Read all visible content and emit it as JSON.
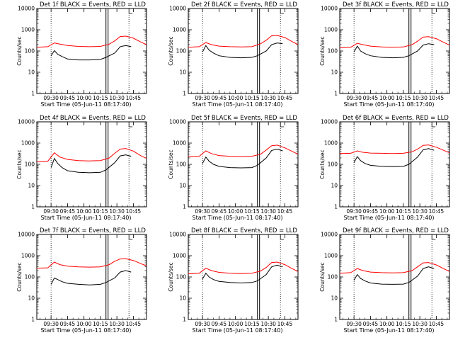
{
  "figure": {
    "ylabel": "Counts/sec",
    "xlabel": "Start Time (05-Jun-11 08:17:40)",
    "x_ticks": [
      "09:30",
      "09:45",
      "10:00",
      "10:15",
      "10:30",
      "10:45"
    ],
    "y_ticks": [
      "1",
      "10",
      "100",
      "1000",
      "10000"
    ],
    "event_color": "#000000",
    "lld_color": "#ff0000"
  },
  "chart_data": [
    {
      "type": "line",
      "title": "Det 1f BLACK = Events, RED = LLD",
      "xlabel": "Start Time (05-Jun-11 08:17:40)",
      "ylabel": "Counts/sec",
      "xlim": [
        "09:17",
        "10:57"
      ],
      "ylim": [
        1,
        10000
      ],
      "yscale": "log",
      "x_markers": [
        "09:30",
        "10:21",
        "10:41"
      ],
      "series": [
        {
          "name": "BLACK = Events",
          "color": "#000000",
          "x": [
            "09:30",
            "09:33",
            "09:36",
            "09:40",
            "09:45",
            "09:55",
            "10:05",
            "10:15",
            "10:20",
            "10:28",
            "10:33",
            "10:38",
            "10:43"
          ],
          "y": [
            60,
            105,
            70,
            55,
            42,
            38,
            38,
            40,
            50,
            80,
            160,
            180,
            160
          ]
        },
        {
          "name": "RED = LLD",
          "color": "#ff0000",
          "x": [
            "09:17",
            "09:27",
            "09:33",
            "09:38",
            "09:45",
            "09:55",
            "10:05",
            "10:15",
            "10:23",
            "10:28",
            "10:33",
            "10:38",
            "10:45",
            "10:52",
            "10:57"
          ],
          "y": [
            150,
            160,
            240,
            210,
            180,
            165,
            160,
            165,
            210,
            300,
            480,
            500,
            400,
            260,
            200
          ]
        }
      ]
    },
    {
      "type": "line",
      "title": "Det 2f BLACK = Events, RED = LLD",
      "xlabel": "Start Time (05-Jun-11 08:17:40)",
      "ylabel": "Counts/sec",
      "xlim": [
        "09:17",
        "10:57"
      ],
      "ylim": [
        1,
        10000
      ],
      "yscale": "log",
      "x_markers": [
        "09:30",
        "10:21",
        "10:41"
      ],
      "series": [
        {
          "name": "BLACK = Events",
          "color": "#000000",
          "x": [
            "09:30",
            "09:33",
            "09:36",
            "09:40",
            "09:45",
            "09:55",
            "10:05",
            "10:15",
            "10:20",
            "10:28",
            "10:33",
            "10:38",
            "10:43"
          ],
          "y": [
            90,
            180,
            110,
            80,
            60,
            50,
            48,
            50,
            60,
            100,
            200,
            240,
            220
          ]
        },
        {
          "name": "RED = LLD",
          "color": "#ff0000",
          "x": [
            "09:17",
            "09:27",
            "09:33",
            "09:38",
            "09:45",
            "09:55",
            "10:05",
            "10:15",
            "10:23",
            "10:28",
            "10:33",
            "10:38",
            "10:45",
            "10:52",
            "10:57"
          ],
          "y": [
            150,
            160,
            250,
            200,
            170,
            160,
            155,
            160,
            220,
            320,
            520,
            540,
            430,
            270,
            200
          ]
        }
      ]
    },
    {
      "type": "line",
      "title": "Det 3f BLACK = Events, RED = LLD",
      "xlabel": "Start Time (05-Jun-11 08:17:40)",
      "ylabel": "Counts/sec",
      "xlim": [
        "09:17",
        "10:57"
      ],
      "ylim": [
        1,
        10000
      ],
      "yscale": "log",
      "x_markers": [
        "09:30",
        "10:21",
        "10:41"
      ],
      "series": [
        {
          "name": "BLACK = Events",
          "color": "#000000",
          "x": [
            "09:30",
            "09:33",
            "09:36",
            "09:40",
            "09:45",
            "09:55",
            "10:05",
            "10:15",
            "10:20",
            "10:28",
            "10:33",
            "10:38",
            "10:43"
          ],
          "y": [
            90,
            170,
            100,
            75,
            60,
            50,
            48,
            50,
            60,
            100,
            190,
            220,
            200
          ]
        },
        {
          "name": "RED = LLD",
          "color": "#ff0000",
          "x": [
            "09:17",
            "09:27",
            "09:33",
            "09:38",
            "09:45",
            "09:55",
            "10:05",
            "10:15",
            "10:23",
            "10:28",
            "10:33",
            "10:38",
            "10:45",
            "10:52",
            "10:57"
          ],
          "y": [
            140,
            150,
            230,
            200,
            170,
            155,
            150,
            155,
            200,
            290,
            450,
            470,
            380,
            250,
            190
          ]
        }
      ]
    },
    {
      "type": "line",
      "title": "Det 4f BLACK = Events, RED = LLD",
      "xlabel": "Start Time (05-Jun-11 08:17:40)",
      "ylabel": "Counts/sec",
      "xlim": [
        "09:17",
        "10:57"
      ],
      "ylim": [
        1,
        10000
      ],
      "yscale": "log",
      "x_markers": [
        "09:30",
        "10:21",
        "10:41"
      ],
      "series": [
        {
          "name": "BLACK = Events",
          "color": "#000000",
          "x": [
            "09:30",
            "09:33",
            "09:36",
            "09:40",
            "09:45",
            "09:55",
            "10:05",
            "10:15",
            "10:20",
            "10:28",
            "10:33",
            "10:38",
            "10:43"
          ],
          "y": [
            70,
            190,
            110,
            70,
            50,
            42,
            40,
            42,
            55,
            120,
            250,
            280,
            240
          ]
        },
        {
          "name": "RED = LLD",
          "color": "#ff0000",
          "x": [
            "09:17",
            "09:27",
            "09:33",
            "09:38",
            "09:45",
            "09:55",
            "10:05",
            "10:15",
            "10:23",
            "10:28",
            "10:33",
            "10:38",
            "10:45",
            "10:52",
            "10:57"
          ],
          "y": [
            130,
            140,
            350,
            220,
            170,
            150,
            145,
            150,
            200,
            330,
            520,
            560,
            420,
            250,
            190
          ]
        }
      ]
    },
    {
      "type": "line",
      "title": "Det 5f BLACK = Events, RED = LLD",
      "xlabel": "Start Time (05-Jun-11 08:17:40)",
      "ylabel": "Counts/sec",
      "xlim": [
        "09:17",
        "10:57"
      ],
      "ylim": [
        1,
        10000
      ],
      "yscale": "log",
      "x_markers": [
        "09:30",
        "10:21",
        "10:41"
      ],
      "series": [
        {
          "name": "BLACK = Events",
          "color": "#000000",
          "x": [
            "09:30",
            "09:33",
            "09:36",
            "09:40",
            "09:45",
            "09:55",
            "10:05",
            "10:15",
            "10:20",
            "10:28",
            "10:33",
            "10:38",
            "10:43"
          ],
          "y": [
            110,
            220,
            140,
            100,
            80,
            70,
            68,
            70,
            90,
            200,
            450,
            520,
            430
          ]
        },
        {
          "name": "RED = LLD",
          "color": "#ff0000",
          "x": [
            "09:17",
            "09:27",
            "09:33",
            "09:38",
            "09:45",
            "09:55",
            "10:05",
            "10:15",
            "10:23",
            "10:28",
            "10:33",
            "10:38",
            "10:45",
            "10:52",
            "10:57"
          ],
          "y": [
            230,
            240,
            430,
            320,
            260,
            240,
            230,
            240,
            300,
            470,
            750,
            800,
            600,
            400,
            300
          ]
        }
      ]
    },
    {
      "type": "line",
      "title": "Det 6f BLACK = Events, RED = LLD",
      "xlabel": "Start Time (05-Jun-11 08:17:40)",
      "ylabel": "Counts/sec",
      "xlim": [
        "09:17",
        "10:57"
      ],
      "ylim": [
        1,
        10000
      ],
      "yscale": "log",
      "x_markers": [
        "09:30",
        "10:21",
        "10:41"
      ],
      "series": [
        {
          "name": "BLACK = Events",
          "color": "#000000",
          "x": [
            "09:30",
            "09:33",
            "09:36",
            "09:40",
            "09:45",
            "09:55",
            "10:05",
            "10:15",
            "10:20",
            "10:28",
            "10:33",
            "10:38",
            "10:43"
          ],
          "y": [
            120,
            230,
            150,
            110,
            90,
            80,
            78,
            80,
            100,
            220,
            480,
            550,
            460
          ]
        },
        {
          "name": "RED = LLD",
          "color": "#ff0000",
          "x": [
            "09:17",
            "09:27",
            "09:33",
            "09:38",
            "09:45",
            "09:55",
            "10:05",
            "10:15",
            "10:23",
            "10:28",
            "10:33",
            "10:38",
            "10:45",
            "10:52",
            "10:57"
          ],
          "y": [
            320,
            330,
            430,
            370,
            340,
            330,
            320,
            330,
            390,
            520,
            780,
            820,
            640,
            450,
            350
          ]
        }
      ]
    },
    {
      "type": "line",
      "title": "Det 7f BLACK = Events, RED = LLD",
      "xlabel": "Start Time (05-Jun-11 08:17:40)",
      "ylabel": "Counts/sec",
      "xlim": [
        "09:17",
        "10:57"
      ],
      "ylim": [
        1,
        10000
      ],
      "yscale": "log",
      "x_markers": [
        "09:30",
        "10:21",
        "10:41"
      ],
      "series": [
        {
          "name": "BLACK = Events",
          "color": "#000000",
          "x": [
            "09:30",
            "09:33",
            "09:36",
            "09:40",
            "09:45",
            "09:55",
            "10:05",
            "10:15",
            "10:20",
            "10:28",
            "10:33",
            "10:38",
            "10:43"
          ],
          "y": [
            45,
            90,
            75,
            60,
            50,
            45,
            42,
            45,
            55,
            90,
            170,
            200,
            170
          ]
        },
        {
          "name": "RED = LLD",
          "color": "#ff0000",
          "x": [
            "09:17",
            "09:27",
            "09:33",
            "09:38",
            "09:45",
            "09:55",
            "10:05",
            "10:15",
            "10:23",
            "10:28",
            "10:33",
            "10:38",
            "10:45",
            "10:52",
            "10:57"
          ],
          "y": [
            260,
            270,
            500,
            380,
            320,
            300,
            290,
            300,
            380,
            550,
            700,
            720,
            600,
            420,
            330
          ]
        }
      ]
    },
    {
      "type": "line",
      "title": "Det 8f BLACK = Events, RED = LLD",
      "xlabel": "Start Time (05-Jun-11 08:17:40)",
      "ylabel": "Counts/sec",
      "xlim": [
        "09:17",
        "10:57"
      ],
      "ylim": [
        1,
        10000
      ],
      "yscale": "log",
      "x_markers": [
        "09:30",
        "10:21",
        "10:41"
      ],
      "series": [
        {
          "name": "BLACK = Events",
          "color": "#000000",
          "x": [
            "09:30",
            "09:33",
            "09:36",
            "09:40",
            "09:45",
            "09:55",
            "10:05",
            "10:15",
            "10:20",
            "10:28",
            "10:33",
            "10:38",
            "10:43"
          ],
          "y": [
            80,
            150,
            100,
            75,
            62,
            55,
            52,
            55,
            65,
            130,
            300,
            360,
            300
          ]
        },
        {
          "name": "RED = LLD",
          "color": "#ff0000",
          "x": [
            "09:17",
            "09:27",
            "09:33",
            "09:38",
            "09:45",
            "09:55",
            "10:05",
            "10:15",
            "10:23",
            "10:28",
            "10:33",
            "10:38",
            "10:45",
            "10:52",
            "10:57"
          ],
          "y": [
            140,
            150,
            260,
            200,
            165,
            150,
            145,
            150,
            190,
            280,
            480,
            500,
            380,
            240,
            180
          ]
        }
      ]
    },
    {
      "type": "line",
      "title": "Det 9f BLACK = Events, RED = LLD",
      "xlabel": "Start Time (05-Jun-11 08:17:40)",
      "ylabel": "Counts/sec",
      "xlim": [
        "09:17",
        "10:57"
      ],
      "ylim": [
        1,
        10000
      ],
      "yscale": "log",
      "x_markers": [
        "09:30",
        "10:21",
        "10:41"
      ],
      "series": [
        {
          "name": "BLACK = Events",
          "color": "#000000",
          "x": [
            "09:30",
            "09:33",
            "09:36",
            "09:40",
            "09:45",
            "09:55",
            "10:05",
            "10:15",
            "10:20",
            "10:28",
            "10:33",
            "10:38",
            "10:43"
          ],
          "y": [
            70,
            130,
            85,
            65,
            52,
            46,
            45,
            46,
            55,
            110,
            250,
            300,
            250
          ]
        },
        {
          "name": "RED = LLD",
          "color": "#ff0000",
          "x": [
            "09:17",
            "09:27",
            "09:33",
            "09:38",
            "09:45",
            "09:55",
            "10:05",
            "10:15",
            "10:23",
            "10:28",
            "10:33",
            "10:38",
            "10:45",
            "10:52",
            "10:57"
          ],
          "y": [
            150,
            160,
            250,
            200,
            170,
            160,
            155,
            160,
            200,
            300,
            460,
            480,
            370,
            240,
            180
          ]
        }
      ]
    }
  ]
}
